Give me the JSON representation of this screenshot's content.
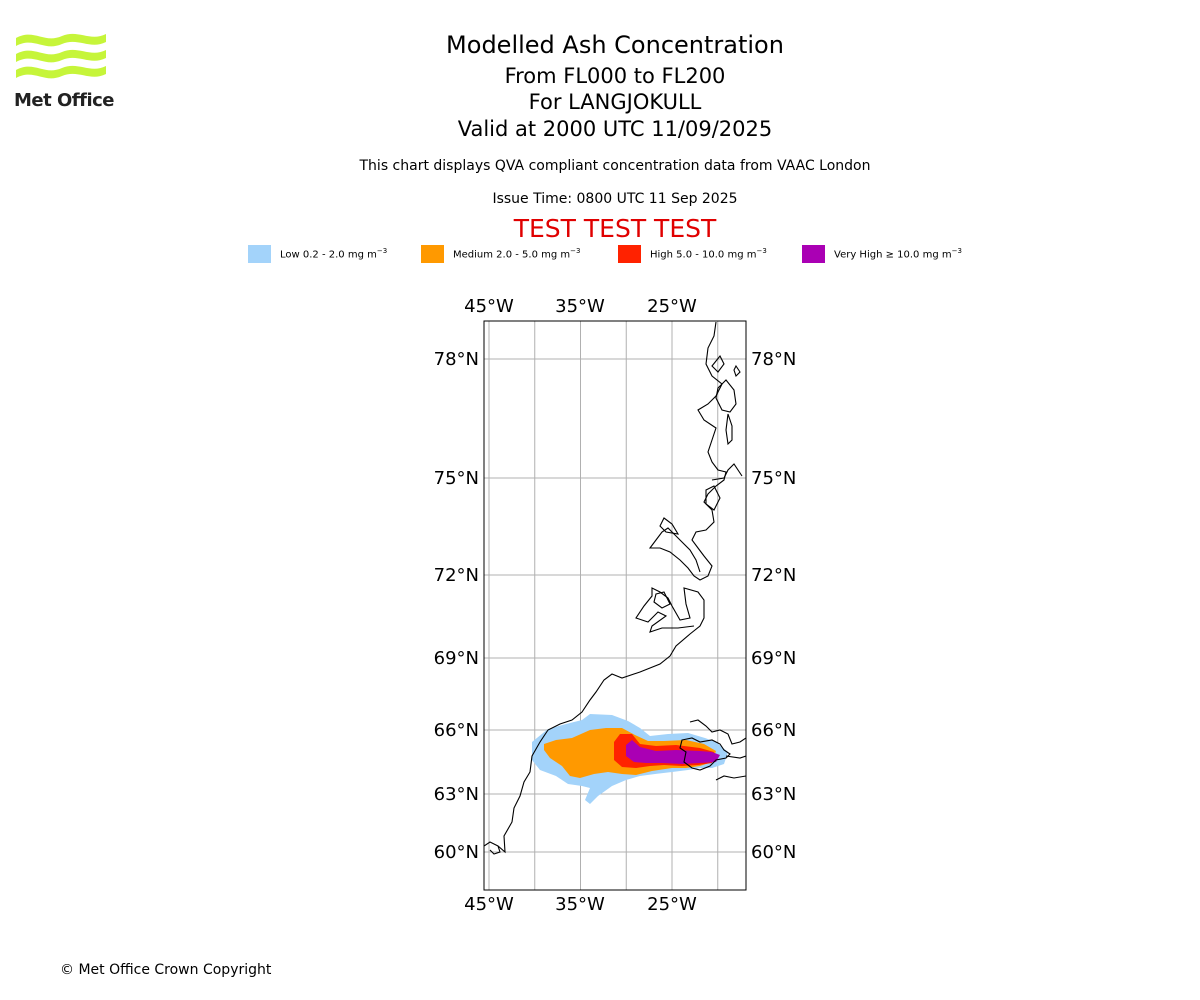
{
  "logo": {
    "text": "Met Office",
    "color": "#c6f53a"
  },
  "titles": {
    "main": "Modelled Ash Concentration",
    "levels": "From FL000 to FL200",
    "volcano": "For LANGJOKULL",
    "valid": "Valid at 2000 UTC 11/09/2025",
    "note": "This chart displays QVA compliant concentration data from VAAC London",
    "issue": "Issue Time: 0800 UTC 11 Sep 2025",
    "test": "TEST TEST TEST"
  },
  "legend": [
    {
      "label": "Low 0.2 - 2.0 mg m",
      "unit_sup": "−3",
      "color": "#a3d3fa"
    },
    {
      "label": "Medium 2.0 - 5.0 mg m",
      "unit_sup": "−3",
      "color": "#ff9900"
    },
    {
      "label": "High 5.0 - 10.0 mg m",
      "unit_sup": "−3",
      "color": "#ff2200"
    },
    {
      "label": "Very High  ≥  10.0 mg m",
      "unit_sup": "−3",
      "color": "#aa00b4"
    }
  ],
  "map": {
    "lon_labels": [
      "45°W",
      "35°W",
      "25°W"
    ],
    "lat_labels": [
      "78°N",
      "75°N",
      "72°N",
      "69°N",
      "66°N",
      "63°N",
      "60°N"
    ],
    "lon_values": [
      -45,
      -40,
      -35,
      -30,
      -25,
      -20
    ],
    "lat_values": [
      78,
      75,
      72,
      69,
      66,
      63,
      60
    ]
  },
  "copyright": "© Met Office Crown Copyright"
}
